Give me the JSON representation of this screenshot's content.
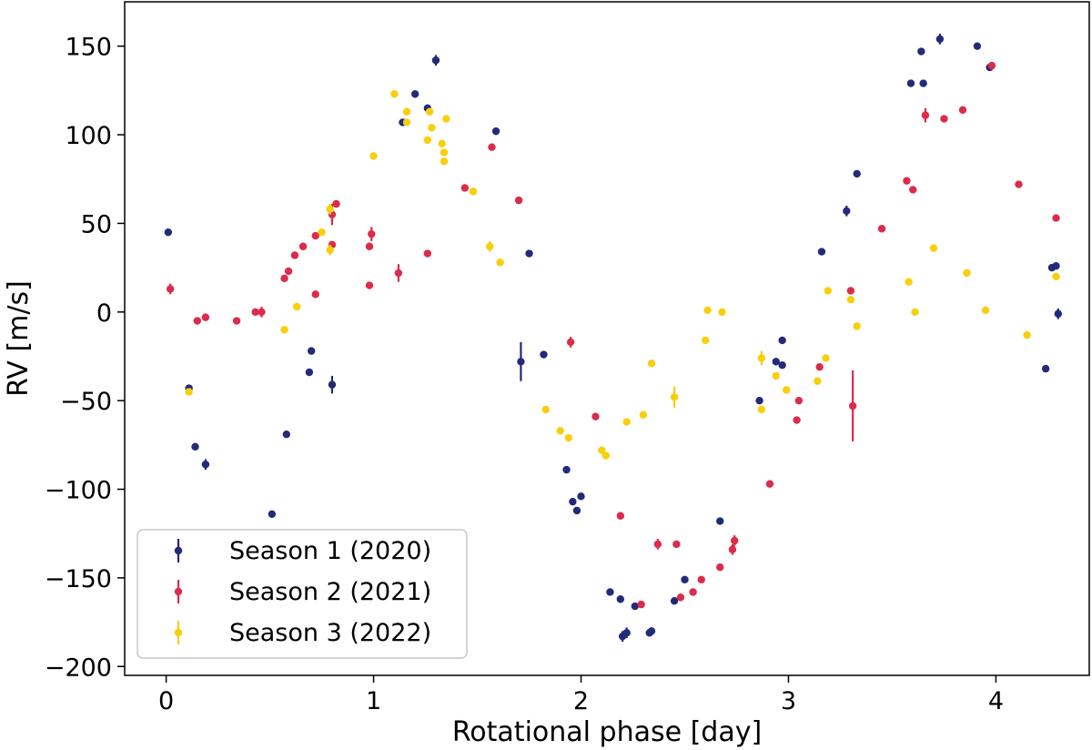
{
  "chart_data": {
    "type": "scatter",
    "xlabel": "Rotational phase [day]",
    "ylabel": "RV [m/s]",
    "xlim": [
      -0.2,
      4.45
    ],
    "ylim": [
      -205,
      175
    ],
    "xticks": [
      0,
      1,
      2,
      3,
      4
    ],
    "xtick_labels": [
      "0",
      "1",
      "2",
      "3",
      "4"
    ],
    "yticks": [
      -200,
      -150,
      -100,
      -50,
      0,
      50,
      100,
      150
    ],
    "ytick_labels": [
      "−200",
      "−150",
      "−100",
      "−50",
      "0",
      "50",
      "100",
      "150"
    ],
    "grid": false,
    "legend_position": "lower-left",
    "series": [
      {
        "name": "Season 1 (2020)",
        "color": "#232A7A",
        "points": [
          [
            0.01,
            45,
            2
          ],
          [
            0.11,
            -43,
            2
          ],
          [
            0.14,
            -76,
            2
          ],
          [
            0.19,
            -86,
            3
          ],
          [
            0.51,
            -114,
            2
          ],
          [
            0.58,
            -69,
            2
          ],
          [
            0.69,
            -34,
            2
          ],
          [
            0.7,
            -22,
            2
          ],
          [
            0.8,
            -41,
            5
          ],
          [
            1.14,
            107,
            2
          ],
          [
            1.2,
            123,
            2
          ],
          [
            1.26,
            115,
            2
          ],
          [
            1.3,
            142,
            3
          ],
          [
            1.59,
            102,
            2
          ],
          [
            1.71,
            -28,
            11
          ],
          [
            1.75,
            33,
            2
          ],
          [
            1.82,
            -24,
            2
          ],
          [
            1.93,
            -89,
            2
          ],
          [
            1.96,
            -107,
            2
          ],
          [
            1.98,
            -112,
            2
          ],
          [
            2.0,
            -104,
            2
          ],
          [
            2.14,
            -158,
            2
          ],
          [
            2.19,
            -162,
            2
          ],
          [
            2.2,
            -183,
            3
          ],
          [
            2.22,
            -181,
            3
          ],
          [
            2.26,
            -166,
            2
          ],
          [
            2.33,
            -181,
            2
          ],
          [
            2.34,
            -180,
            2
          ],
          [
            2.45,
            -163,
            2
          ],
          [
            2.5,
            -151,
            2
          ],
          [
            2.67,
            -118,
            2
          ],
          [
            2.86,
            -50,
            2
          ],
          [
            2.94,
            -28,
            2
          ],
          [
            2.97,
            -30,
            2
          ],
          [
            2.97,
            -16,
            2
          ],
          [
            3.16,
            34,
            2
          ],
          [
            3.28,
            57,
            3
          ],
          [
            3.33,
            78,
            2
          ],
          [
            3.59,
            129,
            2
          ],
          [
            3.64,
            147,
            2
          ],
          [
            3.65,
            129,
            2
          ],
          [
            3.73,
            154,
            3
          ],
          [
            3.91,
            150,
            2
          ],
          [
            3.97,
            138,
            2
          ],
          [
            4.24,
            -32,
            2
          ],
          [
            4.27,
            25,
            2
          ],
          [
            4.29,
            26,
            2
          ],
          [
            4.3,
            -1,
            3
          ]
        ]
      },
      {
        "name": "Season 2 (2021)",
        "color": "#DC2B4B",
        "points": [
          [
            0.02,
            13,
            3
          ],
          [
            0.15,
            -5,
            2
          ],
          [
            0.19,
            -3,
            2
          ],
          [
            0.34,
            -5,
            2
          ],
          [
            0.43,
            0,
            2
          ],
          [
            0.46,
            0,
            3
          ],
          [
            0.57,
            19,
            2
          ],
          [
            0.59,
            23,
            2
          ],
          [
            0.62,
            32,
            2
          ],
          [
            0.66,
            37,
            2
          ],
          [
            0.72,
            43,
            2
          ],
          [
            0.72,
            10,
            2
          ],
          [
            0.8,
            55,
            6
          ],
          [
            0.8,
            38,
            2
          ],
          [
            0.82,
            61,
            2
          ],
          [
            0.98,
            37,
            2
          ],
          [
            0.98,
            15,
            2
          ],
          [
            0.99,
            44,
            4
          ],
          [
            1.12,
            22,
            5
          ],
          [
            1.26,
            33,
            2
          ],
          [
            1.44,
            70,
            2
          ],
          [
            1.57,
            93,
            2
          ],
          [
            1.7,
            63,
            2
          ],
          [
            1.95,
            -17,
            3
          ],
          [
            2.07,
            -59,
            2
          ],
          [
            2.19,
            -115,
            2
          ],
          [
            2.29,
            -165,
            2
          ],
          [
            2.37,
            -131,
            3
          ],
          [
            2.46,
            -131,
            2
          ],
          [
            2.48,
            -161,
            2
          ],
          [
            2.54,
            -158,
            2
          ],
          [
            2.58,
            -151,
            2
          ],
          [
            2.67,
            -144,
            2
          ],
          [
            2.73,
            -134,
            3
          ],
          [
            2.74,
            -129,
            3
          ],
          [
            2.91,
            -97,
            2
          ],
          [
            3.04,
            -61,
            2
          ],
          [
            3.05,
            -50,
            2
          ],
          [
            3.15,
            -31,
            2
          ],
          [
            3.3,
            12,
            2
          ],
          [
            3.31,
            -53,
            20
          ],
          [
            3.45,
            47,
            2
          ],
          [
            3.57,
            74,
            2
          ],
          [
            3.6,
            69,
            2
          ],
          [
            3.66,
            111,
            4
          ],
          [
            3.75,
            109,
            2
          ],
          [
            3.84,
            114,
            2
          ],
          [
            3.98,
            139,
            2
          ],
          [
            4.11,
            72,
            2
          ],
          [
            4.29,
            53,
            2
          ]
        ]
      },
      {
        "name": "Season 3 (2022)",
        "color": "#F8CF0B",
        "points": [
          [
            0.11,
            -45,
            2
          ],
          [
            0.57,
            -10,
            2
          ],
          [
            0.63,
            3,
            2
          ],
          [
            0.75,
            45,
            2
          ],
          [
            0.79,
            35,
            3
          ],
          [
            0.79,
            58,
            3
          ],
          [
            1.0,
            88,
            2
          ],
          [
            1.1,
            123,
            2
          ],
          [
            1.16,
            107,
            2
          ],
          [
            1.16,
            113,
            2
          ],
          [
            1.26,
            97,
            2
          ],
          [
            1.27,
            113,
            2
          ],
          [
            1.28,
            104,
            2
          ],
          [
            1.33,
            95,
            2
          ],
          [
            1.34,
            90,
            2
          ],
          [
            1.34,
            85,
            2
          ],
          [
            1.35,
            109,
            2
          ],
          [
            1.48,
            68,
            2
          ],
          [
            1.56,
            37,
            3
          ],
          [
            1.61,
            28,
            2
          ],
          [
            1.83,
            -55,
            2
          ],
          [
            1.9,
            -67,
            2
          ],
          [
            1.94,
            -71,
            2
          ],
          [
            2.1,
            -78,
            2
          ],
          [
            2.12,
            -81,
            2
          ],
          [
            2.22,
            -62,
            2
          ],
          [
            2.3,
            -58,
            2
          ],
          [
            2.34,
            -29,
            2
          ],
          [
            2.45,
            -48,
            6
          ],
          [
            2.6,
            -16,
            2
          ],
          [
            2.61,
            1,
            2
          ],
          [
            2.68,
            0,
            2
          ],
          [
            2.87,
            -26,
            4
          ],
          [
            2.87,
            -55,
            2
          ],
          [
            2.94,
            -36,
            2
          ],
          [
            2.99,
            -44,
            2
          ],
          [
            3.14,
            -39,
            2
          ],
          [
            3.18,
            -26,
            2
          ],
          [
            3.19,
            12,
            2
          ],
          [
            3.3,
            7,
            2
          ],
          [
            3.33,
            -8,
            2
          ],
          [
            3.58,
            17,
            2
          ],
          [
            3.61,
            0,
            2
          ],
          [
            3.7,
            36,
            2
          ],
          [
            3.86,
            22,
            2
          ],
          [
            3.95,
            1,
            2
          ],
          [
            4.15,
            -13,
            2
          ],
          [
            4.29,
            20,
            2
          ]
        ]
      }
    ]
  }
}
